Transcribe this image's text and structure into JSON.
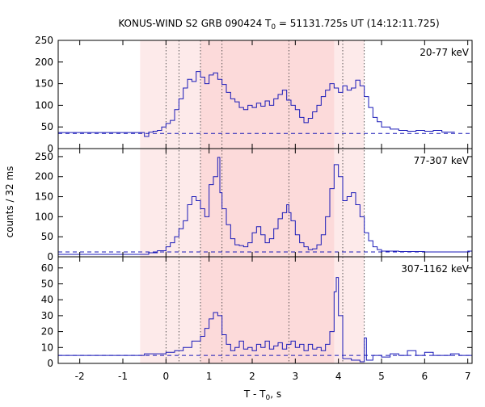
{
  "chart_data": {
    "type": "line",
    "title": {
      "prefix": "KONUS-WIND S2 GRB 090424 T",
      "sub": "0",
      "suffix": " = 51131.725s UT (14:12:11.725)"
    },
    "xlabel": {
      "prefix": "T - T",
      "sub": "0",
      "suffix": ", s"
    },
    "ylabel": "counts / 32 ms",
    "xlim": [
      -2.5,
      7.1
    ],
    "x_ticks": [
      -2,
      -1,
      0,
      1,
      2,
      3,
      4,
      5,
      6,
      7
    ],
    "grid": false,
    "colors": {
      "curve": "#1a1ab8",
      "region_light": "#fdeaea",
      "region_dark": "#fcdada"
    },
    "regions": [
      {
        "x0": -0.6,
        "x1": 4.6,
        "shade": "light"
      },
      {
        "x0": 0.8,
        "x1": 3.9,
        "shade": "dark"
      }
    ],
    "vlines": [
      0.0,
      0.3,
      0.8,
      1.3,
      2.85,
      4.1,
      4.6
    ],
    "panels": [
      {
        "name": "20-77 keV",
        "ylim": [
          0,
          250
        ],
        "y_ticks": [
          0,
          50,
          100,
          150,
          200,
          250
        ],
        "background": 35,
        "series": [
          [
            -2.5,
            37
          ],
          [
            -0.55,
            37
          ],
          [
            -0.5,
            28
          ],
          [
            -0.4,
            38
          ],
          [
            -0.3,
            40
          ],
          [
            -0.2,
            42
          ],
          [
            -0.1,
            50
          ],
          [
            0.0,
            58
          ],
          [
            0.1,
            65
          ],
          [
            0.2,
            90
          ],
          [
            0.3,
            115
          ],
          [
            0.4,
            140
          ],
          [
            0.5,
            160
          ],
          [
            0.6,
            155
          ],
          [
            0.7,
            178
          ],
          [
            0.8,
            165
          ],
          [
            0.9,
            150
          ],
          [
            1.0,
            170
          ],
          [
            1.1,
            175
          ],
          [
            1.2,
            160
          ],
          [
            1.3,
            148
          ],
          [
            1.4,
            130
          ],
          [
            1.5,
            115
          ],
          [
            1.6,
            108
          ],
          [
            1.7,
            95
          ],
          [
            1.8,
            90
          ],
          [
            1.9,
            100
          ],
          [
            2.0,
            95
          ],
          [
            2.1,
            105
          ],
          [
            2.2,
            98
          ],
          [
            2.3,
            110
          ],
          [
            2.4,
            100
          ],
          [
            2.5,
            115
          ],
          [
            2.6,
            125
          ],
          [
            2.7,
            135
          ],
          [
            2.8,
            112
          ],
          [
            2.9,
            100
          ],
          [
            3.0,
            90
          ],
          [
            3.1,
            72
          ],
          [
            3.2,
            60
          ],
          [
            3.3,
            70
          ],
          [
            3.4,
            85
          ],
          [
            3.5,
            100
          ],
          [
            3.6,
            120
          ],
          [
            3.7,
            135
          ],
          [
            3.8,
            150
          ],
          [
            3.9,
            140
          ],
          [
            4.0,
            130
          ],
          [
            4.1,
            145
          ],
          [
            4.2,
            135
          ],
          [
            4.3,
            140
          ],
          [
            4.4,
            158
          ],
          [
            4.5,
            145
          ],
          [
            4.6,
            120
          ],
          [
            4.7,
            95
          ],
          [
            4.8,
            72
          ],
          [
            4.9,
            62
          ],
          [
            5.0,
            50
          ],
          [
            5.2,
            45
          ],
          [
            5.4,
            42
          ],
          [
            5.6,
            40
          ],
          [
            5.8,
            42
          ],
          [
            6.0,
            40
          ],
          [
            6.2,
            42
          ],
          [
            6.4,
            38
          ],
          [
            6.6,
            38
          ]
        ]
      },
      {
        "name": "77-307 keV",
        "ylim": [
          0,
          270
        ],
        "y_ticks": [
          0,
          50,
          100,
          150,
          200,
          250
        ],
        "background": 12,
        "series": [
          [
            -2.5,
            6
          ],
          [
            -0.55,
            6
          ],
          [
            -0.4,
            10
          ],
          [
            -0.2,
            15
          ],
          [
            0.0,
            25
          ],
          [
            0.1,
            35
          ],
          [
            0.2,
            50
          ],
          [
            0.3,
            70
          ],
          [
            0.4,
            90
          ],
          [
            0.5,
            130
          ],
          [
            0.6,
            150
          ],
          [
            0.7,
            140
          ],
          [
            0.8,
            120
          ],
          [
            0.9,
            100
          ],
          [
            1.0,
            180
          ],
          [
            1.1,
            200
          ],
          [
            1.2,
            248
          ],
          [
            1.25,
            160
          ],
          [
            1.3,
            120
          ],
          [
            1.4,
            80
          ],
          [
            1.5,
            45
          ],
          [
            1.6,
            30
          ],
          [
            1.7,
            28
          ],
          [
            1.8,
            25
          ],
          [
            1.9,
            35
          ],
          [
            2.0,
            60
          ],
          [
            2.1,
            75
          ],
          [
            2.2,
            55
          ],
          [
            2.3,
            35
          ],
          [
            2.4,
            45
          ],
          [
            2.5,
            70
          ],
          [
            2.6,
            95
          ],
          [
            2.7,
            110
          ],
          [
            2.8,
            130
          ],
          [
            2.85,
            110
          ],
          [
            2.9,
            90
          ],
          [
            3.0,
            55
          ],
          [
            3.1,
            35
          ],
          [
            3.2,
            25
          ],
          [
            3.3,
            18
          ],
          [
            3.4,
            20
          ],
          [
            3.5,
            30
          ],
          [
            3.6,
            55
          ],
          [
            3.7,
            100
          ],
          [
            3.8,
            170
          ],
          [
            3.9,
            230
          ],
          [
            4.0,
            200
          ],
          [
            4.1,
            140
          ],
          [
            4.2,
            150
          ],
          [
            4.3,
            160
          ],
          [
            4.4,
            130
          ],
          [
            4.5,
            100
          ],
          [
            4.6,
            60
          ],
          [
            4.7,
            40
          ],
          [
            4.8,
            25
          ],
          [
            4.9,
            18
          ],
          [
            5.0,
            14
          ],
          [
            5.4,
            13
          ],
          [
            6.0,
            12
          ],
          [
            6.5,
            12
          ],
          [
            7.0,
            14
          ]
        ]
      },
      {
        "name": "307-1162 keV",
        "ylim": [
          0,
          67
        ],
        "y_ticks": [
          0,
          10,
          20,
          30,
          40,
          50,
          60
        ],
        "background": 5,
        "series": [
          [
            -2.5,
            5
          ],
          [
            -0.55,
            5
          ],
          [
            -0.5,
            6
          ],
          [
            -0.2,
            6
          ],
          [
            0.0,
            7
          ],
          [
            0.2,
            8
          ],
          [
            0.4,
            10
          ],
          [
            0.6,
            14
          ],
          [
            0.8,
            17
          ],
          [
            0.9,
            22
          ],
          [
            1.0,
            28
          ],
          [
            1.1,
            32
          ],
          [
            1.2,
            30
          ],
          [
            1.3,
            18
          ],
          [
            1.4,
            12
          ],
          [
            1.5,
            8
          ],
          [
            1.6,
            10
          ],
          [
            1.7,
            14
          ],
          [
            1.8,
            9
          ],
          [
            1.9,
            10
          ],
          [
            2.0,
            8
          ],
          [
            2.1,
            12
          ],
          [
            2.2,
            10
          ],
          [
            2.3,
            14
          ],
          [
            2.4,
            9
          ],
          [
            2.5,
            11
          ],
          [
            2.6,
            13
          ],
          [
            2.7,
            9
          ],
          [
            2.8,
            12
          ],
          [
            2.9,
            14
          ],
          [
            3.0,
            10
          ],
          [
            3.1,
            12
          ],
          [
            3.2,
            8
          ],
          [
            3.3,
            12
          ],
          [
            3.4,
            9
          ],
          [
            3.5,
            10
          ],
          [
            3.6,
            8
          ],
          [
            3.7,
            12
          ],
          [
            3.8,
            20
          ],
          [
            3.9,
            45
          ],
          [
            3.95,
            54
          ],
          [
            4.0,
            30
          ],
          [
            4.1,
            3
          ],
          [
            4.3,
            2
          ],
          [
            4.5,
            1
          ],
          [
            4.6,
            16
          ],
          [
            4.65,
            2
          ],
          [
            4.8,
            5
          ],
          [
            5.0,
            4
          ],
          [
            5.2,
            6
          ],
          [
            5.4,
            5
          ],
          [
            5.6,
            8
          ],
          [
            5.8,
            5
          ],
          [
            6.0,
            7
          ],
          [
            6.2,
            5
          ],
          [
            6.4,
            5
          ],
          [
            6.6,
            6
          ],
          [
            6.8,
            5
          ],
          [
            7.0,
            5
          ]
        ]
      }
    ]
  }
}
